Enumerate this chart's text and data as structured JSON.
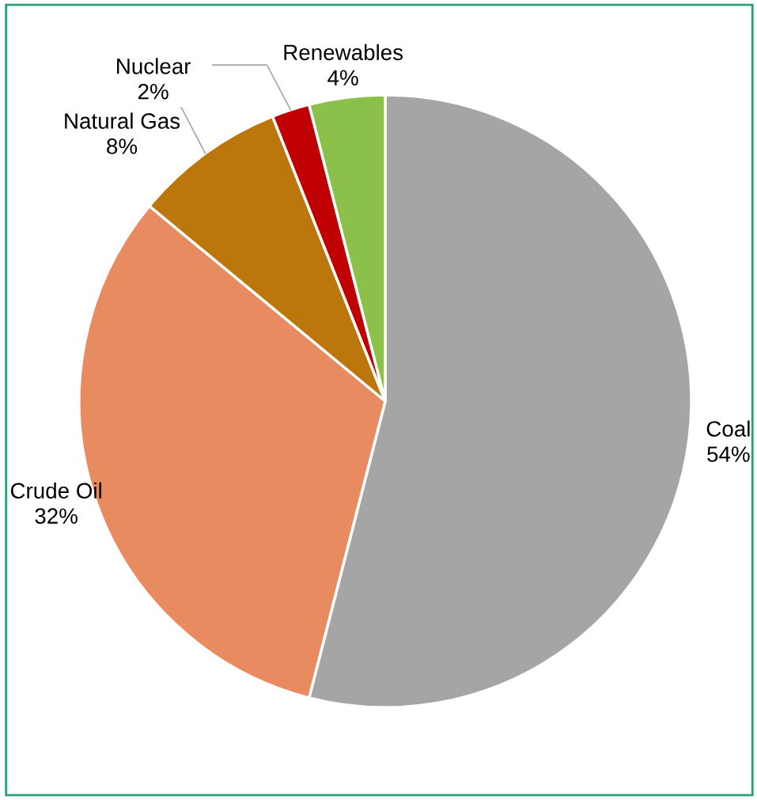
{
  "chart_data": {
    "type": "pie",
    "categories": [
      "Coal",
      "Crude Oil",
      "Natural Gas",
      "Nuclear",
      "Renewables"
    ],
    "values": [
      54,
      32,
      8,
      2,
      4
    ],
    "colors": [
      "#a5a5a5",
      "#e98b61",
      "#bb770b",
      "#c00000",
      "#8bc14a"
    ],
    "value_labels": [
      "54%",
      "32%",
      "8%",
      "2%",
      "4%"
    ]
  }
}
